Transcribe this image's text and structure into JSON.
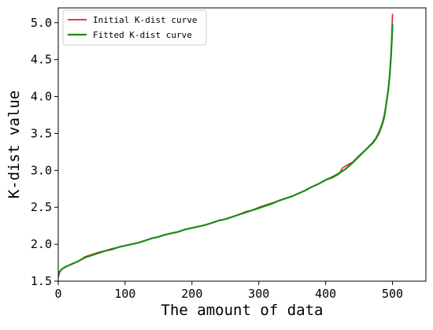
{
  "chart_data": {
    "type": "line",
    "title": "",
    "xlabel": "The amount of data",
    "ylabel": "K-dist value",
    "xlim": [
      0,
      550
    ],
    "ylim": [
      1.5,
      5.2
    ],
    "xticks": [
      0,
      100,
      200,
      300,
      400,
      500
    ],
    "yticks": [
      1.5,
      2.0,
      2.5,
      3.0,
      3.5,
      4.0,
      4.5,
      5.0
    ],
    "xtick_labels": [
      "0",
      "100",
      "200",
      "300",
      "400",
      "500"
    ],
    "ytick_labels": [
      "1.5",
      "2.0",
      "2.5",
      "3.0",
      "3.5",
      "4.0",
      "4.5",
      "5.0"
    ],
    "grid": false,
    "legend_position": "top-left",
    "series": [
      {
        "name": "Initial K-dist curve",
        "color": "#d62728",
        "x": [
          0,
          2,
          5,
          10,
          20,
          30,
          40,
          50,
          60,
          70,
          80,
          90,
          100,
          110,
          120,
          130,
          140,
          150,
          160,
          170,
          180,
          190,
          200,
          210,
          220,
          230,
          240,
          250,
          260,
          270,
          280,
          290,
          300,
          310,
          320,
          330,
          340,
          350,
          360,
          370,
          380,
          390,
          400,
          410,
          420,
          425,
          430,
          440,
          450,
          460,
          470,
          475,
          480,
          485,
          488,
          490,
          492,
          494,
          496,
          497,
          498,
          499,
          500
        ],
        "y": [
          1.55,
          1.62,
          1.66,
          1.69,
          1.73,
          1.77,
          1.83,
          1.86,
          1.89,
          1.91,
          1.94,
          1.96,
          1.98,
          2.0,
          2.02,
          2.05,
          2.08,
          2.1,
          2.13,
          2.15,
          2.17,
          2.2,
          2.22,
          2.24,
          2.26,
          2.29,
          2.32,
          2.34,
          2.37,
          2.4,
          2.44,
          2.46,
          2.5,
          2.53,
          2.56,
          2.59,
          2.62,
          2.65,
          2.69,
          2.73,
          2.78,
          2.82,
          2.87,
          2.9,
          2.95,
          3.03,
          3.06,
          3.11,
          3.2,
          3.28,
          3.36,
          3.42,
          3.5,
          3.62,
          3.72,
          3.85,
          3.98,
          4.1,
          4.3,
          4.45,
          4.6,
          4.85,
          5.12
        ]
      },
      {
        "name": "Fitted K-dist curve",
        "color": "#1a8a1a",
        "x": [
          0,
          2,
          5,
          10,
          20,
          30,
          40,
          50,
          60,
          70,
          80,
          90,
          100,
          110,
          120,
          130,
          140,
          150,
          160,
          170,
          180,
          190,
          200,
          210,
          220,
          230,
          240,
          250,
          260,
          270,
          280,
          290,
          300,
          310,
          320,
          330,
          340,
          350,
          360,
          370,
          380,
          390,
          400,
          410,
          420,
          430,
          440,
          450,
          460,
          470,
          475,
          480,
          485,
          488,
          490,
          492,
          494,
          496,
          497,
          498,
          499,
          500
        ],
        "y": [
          1.58,
          1.63,
          1.66,
          1.69,
          1.73,
          1.77,
          1.82,
          1.85,
          1.88,
          1.91,
          1.93,
          1.96,
          1.98,
          2.0,
          2.02,
          2.05,
          2.08,
          2.1,
          2.13,
          2.15,
          2.17,
          2.2,
          2.22,
          2.24,
          2.26,
          2.29,
          2.32,
          2.34,
          2.37,
          2.4,
          2.43,
          2.46,
          2.49,
          2.52,
          2.55,
          2.59,
          2.62,
          2.65,
          2.69,
          2.73,
          2.78,
          2.82,
          2.87,
          2.91,
          2.96,
          3.02,
          3.1,
          3.19,
          3.28,
          3.37,
          3.43,
          3.52,
          3.64,
          3.75,
          3.86,
          3.98,
          4.12,
          4.3,
          4.44,
          4.58,
          4.76,
          4.98
        ]
      }
    ]
  }
}
